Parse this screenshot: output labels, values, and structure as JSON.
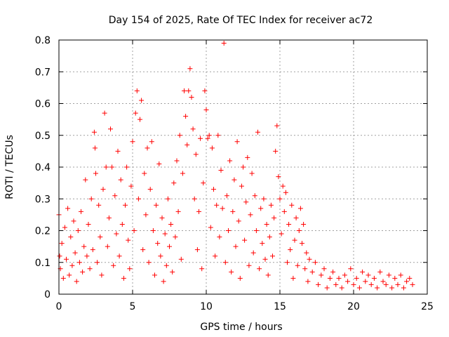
{
  "chart_data": {
    "type": "scatter",
    "title": "Day 154 of 2025, Rate Of TEC Index for receiver ac72",
    "xlabel": "GPS time / hours",
    "ylabel": "ROTI / TECUs",
    "xlim": [
      0,
      25
    ],
    "ylim": [
      0,
      0.8
    ],
    "xticks": [
      0,
      5,
      10,
      15,
      20,
      25
    ],
    "yticks": [
      0,
      0.1,
      0.2,
      0.3,
      0.4,
      0.5,
      0.6,
      0.7,
      0.8
    ],
    "xtick_labels": [
      "0",
      "5",
      "10",
      "15",
      "20",
      "25"
    ],
    "ytick_labels": [
      "0",
      "0.1",
      "0.2",
      "0.3",
      "0.4",
      "0.5",
      "0.6",
      "0.7",
      "0.8"
    ],
    "grid": true,
    "marker": "+",
    "color": "#ff0000",
    "series": [
      {
        "points": [
          [
            0.0,
            0.25
          ],
          [
            0.05,
            0.12
          ],
          [
            0.1,
            0.08
          ],
          [
            0.2,
            0.16
          ],
          [
            0.3,
            0.05
          ],
          [
            0.4,
            0.21
          ],
          [
            0.5,
            0.11
          ],
          [
            0.6,
            0.27
          ],
          [
            0.7,
            0.06
          ],
          [
            0.8,
            0.18
          ],
          [
            0.9,
            0.09
          ],
          [
            1.0,
            0.23
          ],
          [
            1.1,
            0.13
          ],
          [
            1.2,
            0.04
          ],
          [
            1.3,
            0.2
          ],
          [
            1.4,
            0.1
          ],
          [
            1.5,
            0.26
          ],
          [
            1.6,
            0.07
          ],
          [
            1.7,
            0.15
          ],
          [
            1.8,
            0.36
          ],
          [
            1.9,
            0.12
          ],
          [
            2.0,
            0.22
          ],
          [
            2.1,
            0.08
          ],
          [
            2.2,
            0.3
          ],
          [
            2.3,
            0.14
          ],
          [
            2.4,
            0.51
          ],
          [
            2.45,
            0.46
          ],
          [
            2.5,
            0.38
          ],
          [
            2.6,
            0.1
          ],
          [
            2.7,
            0.28
          ],
          [
            2.8,
            0.18
          ],
          [
            2.9,
            0.06
          ],
          [
            3.0,
            0.33
          ],
          [
            3.1,
            0.57
          ],
          [
            3.2,
            0.4
          ],
          [
            3.3,
            0.15
          ],
          [
            3.4,
            0.24
          ],
          [
            3.5,
            0.52
          ],
          [
            3.6,
            0.4
          ],
          [
            3.7,
            0.09
          ],
          [
            3.8,
            0.31
          ],
          [
            3.9,
            0.19
          ],
          [
            4.0,
            0.45
          ],
          [
            4.1,
            0.12
          ],
          [
            4.2,
            0.36
          ],
          [
            4.3,
            0.22
          ],
          [
            4.4,
            0.05
          ],
          [
            4.5,
            0.28
          ],
          [
            4.6,
            0.4
          ],
          [
            4.7,
            0.17
          ],
          [
            4.8,
            0.08
          ],
          [
            4.9,
            0.34
          ],
          [
            5.0,
            0.48
          ],
          [
            5.1,
            0.2
          ],
          [
            5.2,
            0.57
          ],
          [
            5.3,
            0.64
          ],
          [
            5.4,
            0.3
          ],
          [
            5.5,
            0.55
          ],
          [
            5.6,
            0.61
          ],
          [
            5.7,
            0.14
          ],
          [
            5.8,
            0.38
          ],
          [
            5.9,
            0.25
          ],
          [
            6.0,
            0.46
          ],
          [
            6.1,
            0.1
          ],
          [
            6.2,
            0.33
          ],
          [
            6.3,
            0.48
          ],
          [
            6.4,
            0.2
          ],
          [
            6.5,
            0.06
          ],
          [
            6.6,
            0.28
          ],
          [
            6.7,
            0.16
          ],
          [
            6.8,
            0.41
          ],
          [
            6.9,
            0.12
          ],
          [
            7.0,
            0.24
          ],
          [
            7.1,
            0.04
          ],
          [
            7.2,
            0.19
          ],
          [
            7.3,
            0.09
          ],
          [
            7.4,
            0.3
          ],
          [
            7.5,
            0.15
          ],
          [
            7.6,
            0.22
          ],
          [
            7.7,
            0.07
          ],
          [
            7.8,
            0.35
          ],
          [
            7.9,
            0.18
          ],
          [
            8.0,
            0.42
          ],
          [
            8.1,
            0.26
          ],
          [
            8.2,
            0.5
          ],
          [
            8.3,
            0.11
          ],
          [
            8.4,
            0.38
          ],
          [
            8.5,
            0.64
          ],
          [
            8.6,
            0.56
          ],
          [
            8.7,
            0.47
          ],
          [
            8.8,
            0.64
          ],
          [
            8.9,
            0.71
          ],
          [
            9.0,
            0.62
          ],
          [
            9.1,
            0.52
          ],
          [
            9.2,
            0.3
          ],
          [
            9.3,
            0.44
          ],
          [
            9.4,
            0.14
          ],
          [
            9.5,
            0.26
          ],
          [
            9.6,
            0.49
          ],
          [
            9.7,
            0.08
          ],
          [
            9.8,
            0.35
          ],
          [
            9.9,
            0.64
          ],
          [
            10.0,
            0.58
          ],
          [
            10.1,
            0.49
          ],
          [
            10.2,
            0.5
          ],
          [
            10.3,
            0.21
          ],
          [
            10.4,
            0.46
          ],
          [
            10.5,
            0.33
          ],
          [
            10.6,
            0.12
          ],
          [
            10.7,
            0.28
          ],
          [
            10.8,
            0.5
          ],
          [
            10.9,
            0.18
          ],
          [
            11.0,
            0.39
          ],
          [
            11.1,
            0.27
          ],
          [
            11.2,
            0.79
          ],
          [
            11.3,
            0.1
          ],
          [
            11.4,
            0.31
          ],
          [
            11.5,
            0.2
          ],
          [
            11.6,
            0.42
          ],
          [
            11.7,
            0.07
          ],
          [
            11.8,
            0.26
          ],
          [
            11.9,
            0.36
          ],
          [
            12.0,
            0.15
          ],
          [
            12.1,
            0.48
          ],
          [
            12.2,
            0.23
          ],
          [
            12.3,
            0.05
          ],
          [
            12.4,
            0.34
          ],
          [
            12.5,
            0.4
          ],
          [
            12.6,
            0.17
          ],
          [
            12.7,
            0.29
          ],
          [
            12.8,
            0.43
          ],
          [
            12.9,
            0.09
          ],
          [
            13.0,
            0.25
          ],
          [
            13.1,
            0.38
          ],
          [
            13.2,
            0.13
          ],
          [
            13.3,
            0.31
          ],
          [
            13.4,
            0.2
          ],
          [
            13.5,
            0.51
          ],
          [
            13.6,
            0.08
          ],
          [
            13.7,
            0.27
          ],
          [
            13.8,
            0.16
          ],
          [
            13.9,
            0.3
          ],
          [
            14.0,
            0.11
          ],
          [
            14.1,
            0.22
          ],
          [
            14.2,
            0.06
          ],
          [
            14.3,
            0.18
          ],
          [
            14.4,
            0.28
          ],
          [
            14.5,
            0.12
          ],
          [
            14.6,
            0.24
          ],
          [
            14.7,
            0.45
          ],
          [
            14.8,
            0.53
          ],
          [
            14.9,
            0.37
          ],
          [
            15.0,
            0.3
          ],
          [
            15.1,
            0.19
          ],
          [
            15.2,
            0.34
          ],
          [
            15.3,
            0.26
          ],
          [
            15.4,
            0.32
          ],
          [
            15.5,
            0.1
          ],
          [
            15.6,
            0.22
          ],
          [
            15.7,
            0.14
          ],
          [
            15.8,
            0.28
          ],
          [
            15.9,
            0.05
          ],
          [
            16.0,
            0.17
          ],
          [
            16.1,
            0.24
          ],
          [
            16.2,
            0.09
          ],
          [
            16.3,
            0.2
          ],
          [
            16.4,
            0.27
          ],
          [
            16.5,
            0.16
          ],
          [
            16.6,
            0.22
          ],
          [
            16.7,
            0.08
          ],
          [
            16.8,
            0.13
          ],
          [
            16.9,
            0.04
          ],
          [
            17.0,
            0.11
          ],
          [
            17.2,
            0.07
          ],
          [
            17.4,
            0.1
          ],
          [
            17.6,
            0.03
          ],
          [
            17.8,
            0.06
          ],
          [
            18.0,
            0.08
          ],
          [
            18.2,
            0.02
          ],
          [
            18.4,
            0.05
          ],
          [
            18.6,
            0.07
          ],
          [
            18.8,
            0.03
          ],
          [
            19.0,
            0.05
          ],
          [
            19.2,
            0.02
          ],
          [
            19.4,
            0.06
          ],
          [
            19.6,
            0.04
          ],
          [
            19.8,
            0.08
          ],
          [
            20.0,
            0.03
          ],
          [
            20.2,
            0.05
          ],
          [
            20.4,
            0.02
          ],
          [
            20.6,
            0.07
          ],
          [
            20.8,
            0.04
          ],
          [
            21.0,
            0.06
          ],
          [
            21.2,
            0.03
          ],
          [
            21.4,
            0.05
          ],
          [
            21.6,
            0.02
          ],
          [
            21.8,
            0.07
          ],
          [
            22.0,
            0.04
          ],
          [
            22.2,
            0.03
          ],
          [
            22.4,
            0.06
          ],
          [
            22.6,
            0.02
          ],
          [
            22.8,
            0.05
          ],
          [
            23.0,
            0.03
          ],
          [
            23.2,
            0.06
          ],
          [
            23.4,
            0.02
          ],
          [
            23.6,
            0.04
          ],
          [
            23.8,
            0.05
          ],
          [
            24.0,
            0.03
          ]
        ]
      }
    ]
  }
}
